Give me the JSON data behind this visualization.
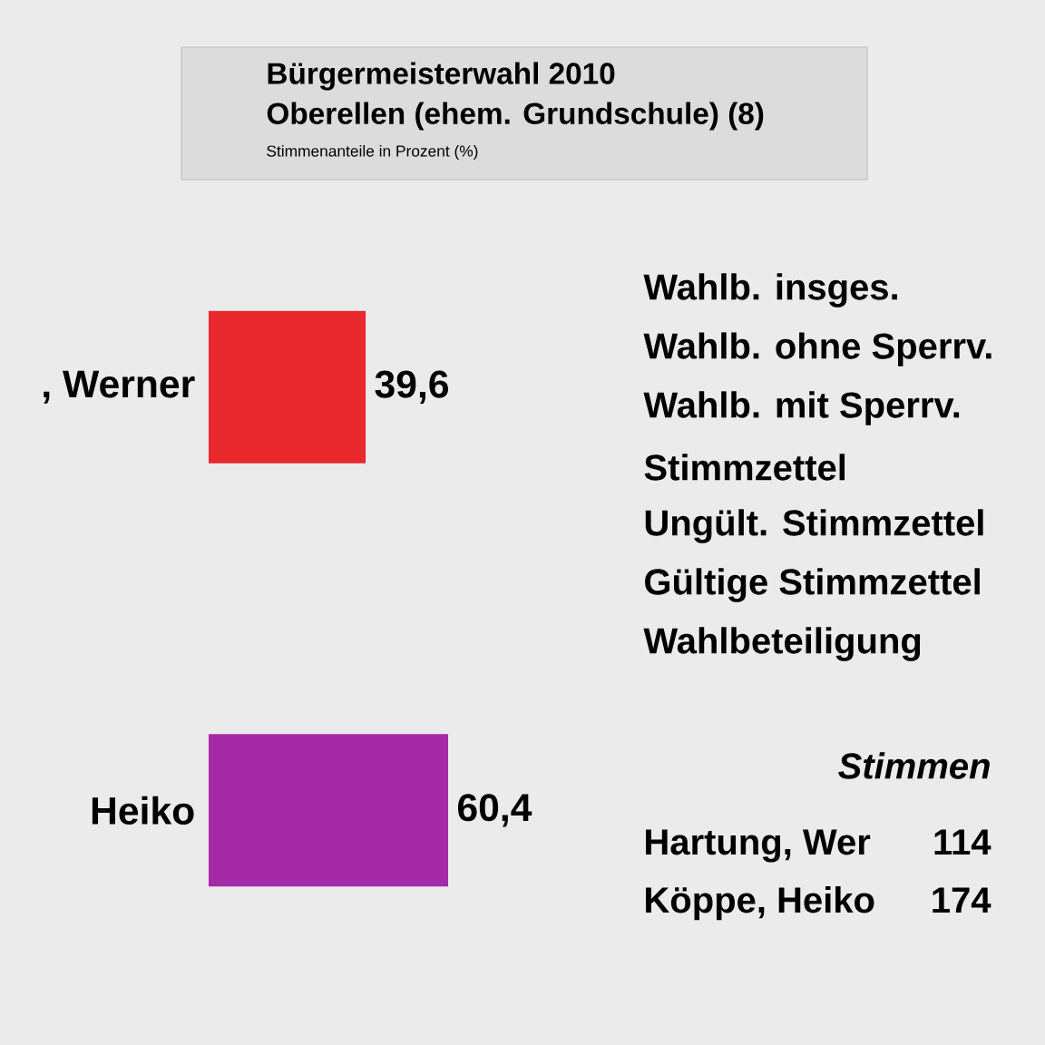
{
  "chart_data": {
    "type": "bar",
    "orientation": "horizontal",
    "title": "Bürgermeisterwahl 2010",
    "subtitle": "Oberellen (ehem. Grundschule) (8)",
    "categories": [
      ", Werner",
      "Heiko"
    ],
    "values": [
      39.6,
      60.4
    ],
    "colors": [
      "#e8282d",
      "#a42aa8"
    ],
    "value_labels": [
      "39,6",
      "60,4"
    ],
    "tick_labels": "y",
    "annotations": [
      "Stimmenanteile in Prozent (%)",
      "Wahlb. insges.",
      "Wahlb. ohne Sperrv.",
      "Wahlb. mit Sperrv.",
      "Stimmzettel",
      "Ungült. Stimmzettel",
      "Gültige Stimmzettel",
      "Wahlbeteiligung",
      "Stimmen",
      "Hartung, Wer",
      "114",
      "Köppe, Heiko",
      "174"
    ]
  }
}
